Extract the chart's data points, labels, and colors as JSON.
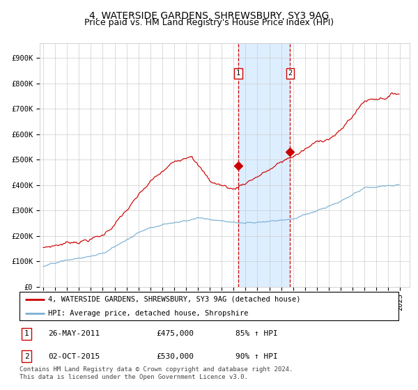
{
  "title": "4, WATERSIDE GARDENS, SHREWSBURY, SY3 9AG",
  "subtitle": "Price paid vs. HM Land Registry's House Price Index (HPI)",
  "ylabel_ticks": [
    "£0",
    "£100K",
    "£200K",
    "£300K",
    "£400K",
    "£500K",
    "£600K",
    "£700K",
    "£800K",
    "£900K"
  ],
  "ytick_values": [
    0,
    100000,
    200000,
    300000,
    400000,
    500000,
    600000,
    700000,
    800000,
    900000
  ],
  "ylim": [
    0,
    960000
  ],
  "xlim_start": 1994.7,
  "xlim_end": 2025.8,
  "red_line_color": "#cc0000",
  "blue_line_color": "#7bafd4",
  "shade_color": "#ddeeff",
  "dashed_color": "#cc0000",
  "marker1_date": 2011.38,
  "marker1_value": 475000,
  "marker2_date": 2015.75,
  "marker2_value": 530000,
  "purchase1_date": 2011.38,
  "purchase2_date": 2015.75,
  "legend_red": "4, WATERSIDE GARDENS, SHREWSBURY, SY3 9AG (detached house)",
  "legend_blue": "HPI: Average price, detached house, Shropshire",
  "table_row1": [
    "1",
    "26-MAY-2011",
    "£475,000",
    "85% ↑ HPI"
  ],
  "table_row2": [
    "2",
    "02-OCT-2015",
    "£530,000",
    "90% ↑ HPI"
  ],
  "footnote": "Contains HM Land Registry data © Crown copyright and database right 2024.\nThis data is licensed under the Open Government Licence v3.0.",
  "background_color": "#ffffff",
  "grid_color": "#cccccc",
  "title_fontsize": 10,
  "subtitle_fontsize": 9,
  "tick_fontsize": 7.5
}
